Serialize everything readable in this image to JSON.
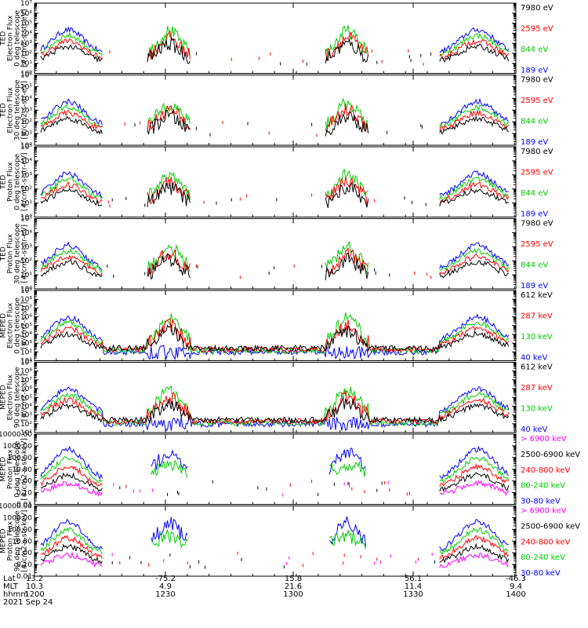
{
  "chart_data": {
    "type": "line",
    "date": "2021 Sep 24",
    "x_axis": {
      "rows": [
        {
          "label": "Lat",
          "values": [
            "13.2",
            "-75.2",
            "15.8",
            "56.1",
            "-46.3"
          ]
        },
        {
          "label": "MLT",
          "values": [
            "10.3",
            "4.9",
            "21.6",
            "11.4",
            "9.4"
          ]
        },
        {
          "label": "hhmm",
          "values": [
            "1200",
            "1230",
            "1300",
            "1330",
            "1400"
          ]
        }
      ],
      "range": [
        "1200",
        "1400"
      ]
    },
    "panels": [
      {
        "ylabel": [
          "TED",
          "Electron Flux",
          "0 deg telescope",
          "[#/cm2-s-str-eV]"
        ],
        "scale": "log",
        "ylim": [
          1,
          10000000
        ],
        "tick_labels": [
          "10⁰",
          "10¹",
          "10²",
          "10³",
          "10⁴",
          "10⁵",
          "10⁶",
          "10⁷"
        ],
        "legend": [
          {
            "name": "7980 eV",
            "color": "#000000"
          },
          {
            "name": "2595 eV",
            "color": "#ff0000"
          },
          {
            "name": "844 eV",
            "color": "#00cc00"
          },
          {
            "name": "189 eV",
            "color": "#0000ff"
          }
        ]
      },
      {
        "ylabel": [
          "TED",
          "Electron Flux",
          "30 deg telescope",
          "[#/cm2-s-str-eV]"
        ],
        "scale": "log",
        "ylim": [
          1,
          1000000
        ],
        "tick_labels": [
          "10⁰",
          "10¹",
          "10²",
          "10³",
          "10⁴",
          "10⁵",
          "10⁶"
        ],
        "legend": [
          {
            "name": "7980 eV",
            "color": "#000000"
          },
          {
            "name": "2595 eV",
            "color": "#ff0000"
          },
          {
            "name": "844 eV",
            "color": "#00cc00"
          },
          {
            "name": "189 eV",
            "color": "#0000ff"
          }
        ]
      },
      {
        "ylabel": [
          "TED",
          "Proton Flux",
          "0 deg telescope",
          "[#/cm2-s-str-eV]"
        ],
        "scale": "log",
        "ylim": [
          1,
          100000
        ],
        "tick_labels": [
          "10⁰",
          "10¹",
          "10²",
          "10³",
          "10⁴",
          "10⁵"
        ],
        "legend": [
          {
            "name": "7980 eV",
            "color": "#000000"
          },
          {
            "name": "2595 eV",
            "color": "#ff0000"
          },
          {
            "name": "844 eV",
            "color": "#00cc00"
          },
          {
            "name": "189 eV",
            "color": "#0000ff"
          }
        ]
      },
      {
        "ylabel": [
          "TED",
          "Proton Flux",
          "30 deg telescope",
          "[#/cm2-s-str-eV]"
        ],
        "scale": "log",
        "ylim": [
          1,
          100000
        ],
        "tick_labels": [
          "10⁰",
          "10¹",
          "10²",
          "10³",
          "10⁴",
          "10⁵"
        ],
        "legend": [
          {
            "name": "7980 eV",
            "color": "#000000"
          },
          {
            "name": "2595 eV",
            "color": "#ff0000"
          },
          {
            "name": "844 eV",
            "color": "#00cc00"
          },
          {
            "name": "189 eV",
            "color": "#0000ff"
          }
        ]
      },
      {
        "ylabel": [
          "MEPED",
          "Electron Flux",
          "0 deg telescope",
          "[#/cm2-s-str]"
        ],
        "scale": "log",
        "ylim": [
          10,
          1000000000
        ],
        "tick_labels": [
          "10¹",
          "10²",
          "10³",
          "10⁴",
          "10⁵",
          "10⁶",
          "10⁷",
          "10⁸",
          "10⁹"
        ],
        "legend": [
          {
            "name": "612 keV",
            "color": "#000000"
          },
          {
            "name": "287 keV",
            "color": "#ff0000"
          },
          {
            "name": "130 keV",
            "color": "#00cc00"
          },
          {
            "name": "40 keV",
            "color": "#0000ff"
          }
        ]
      },
      {
        "ylabel": [
          "MEPED",
          "Electron Flux",
          "90 deg telescope",
          "[#/cm2-s-str]"
        ],
        "scale": "log",
        "ylim": [
          10,
          1000000000
        ],
        "tick_labels": [
          "10¹",
          "10²",
          "10³",
          "10⁴",
          "10⁵",
          "10⁶",
          "10⁷",
          "10⁸",
          "10⁹"
        ],
        "legend": [
          {
            "name": "612 keV",
            "color": "#000000"
          },
          {
            "name": "287 keV",
            "color": "#ff0000"
          },
          {
            "name": "130 keV",
            "color": "#00cc00"
          },
          {
            "name": "40 keV",
            "color": "#0000ff"
          }
        ]
      },
      {
        "ylabel": [
          "MEPED",
          "Proton Flux",
          "0 deg telescope",
          "[#/cm2-s-str-keV]"
        ],
        "scale": "log",
        "ylim": [
          0.01,
          10000
        ],
        "tick_labels": [
          "0.01",
          "0.10",
          "1.00",
          "10.00",
          "100.00",
          "1000.00",
          "10000.00"
        ],
        "legend": [
          {
            "name": "> 6900 keV",
            "color": "#ff00ff"
          },
          {
            "name": "2500-6900 keV",
            "color": "#000000"
          },
          {
            "name": "240-800 keV",
            "color": "#ff0000"
          },
          {
            "name": "80-240 keV",
            "color": "#00cc00"
          },
          {
            "name": "30-80 keV",
            "color": "#0000ff"
          }
        ]
      },
      {
        "ylabel": [
          "MEPED",
          "Proton Flux",
          "90 deg telescope",
          "[#/cm2-s-str-keV]"
        ],
        "scale": "log",
        "ylim": [
          0.01,
          10000
        ],
        "tick_labels": [
          "0.01",
          "0.10",
          "1.00",
          "10.00",
          "100.00",
          "1000.00",
          "10000.00"
        ],
        "legend": [
          {
            "name": "> 6900 keV",
            "color": "#ff00ff"
          },
          {
            "name": "2500-6900 keV",
            "color": "#000000"
          },
          {
            "name": "240-800 keV",
            "color": "#ff0000"
          },
          {
            "name": "80-240 keV",
            "color": "#00cc00"
          },
          {
            "name": "30-80 keV",
            "color": "#0000ff"
          }
        ]
      }
    ]
  }
}
